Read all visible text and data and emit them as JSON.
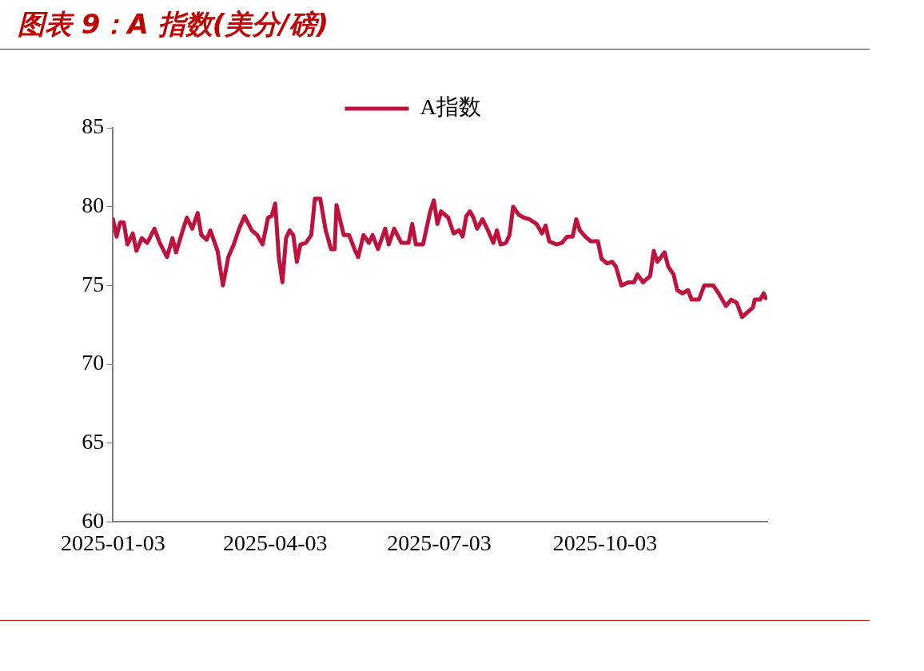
{
  "chart_data": {
    "type": "line",
    "title": "图表 9：A 指数(美分/磅)",
    "series": [
      {
        "name": "A指数",
        "color": "#c0103c",
        "x": [
          "2025-01-03",
          "2025-01-05",
          "2025-01-07",
          "2025-01-09",
          "2025-01-11",
          "2025-01-14",
          "2025-01-16",
          "2025-01-19",
          "2025-01-22",
          "2025-01-26",
          "2025-01-29",
          "2025-02-02",
          "2025-02-05",
          "2025-02-07",
          "2025-02-11",
          "2025-02-13",
          "2025-02-16",
          "2025-02-19",
          "2025-02-21",
          "2025-02-24",
          "2025-02-26",
          "2025-03-02",
          "2025-03-05",
          "2025-03-08",
          "2025-03-11",
          "2025-03-14",
          "2025-03-17",
          "2025-03-21",
          "2025-03-24",
          "2025-03-27",
          "2025-03-30",
          "2025-04-01",
          "2025-04-03",
          "2025-04-05",
          "2025-04-07",
          "2025-04-09",
          "2025-04-11",
          "2025-04-13",
          "2025-04-15",
          "2025-04-17",
          "2025-04-20",
          "2025-04-23",
          "2025-04-25",
          "2025-04-28",
          "2025-05-01",
          "2025-05-04",
          "2025-05-06",
          "2025-05-07",
          "2025-05-11",
          "2025-05-14",
          "2025-05-17",
          "2025-05-19",
          "2025-05-22",
          "2025-05-25",
          "2025-05-27",
          "2025-05-30",
          "2025-06-03",
          "2025-06-05",
          "2025-06-08",
          "2025-06-12",
          "2025-06-16",
          "2025-06-18",
          "2025-06-20",
          "2025-06-24",
          "2025-06-28",
          "2025-06-30",
          "2025-07-02",
          "2025-07-04",
          "2025-07-08",
          "2025-07-11",
          "2025-07-14",
          "2025-07-16",
          "2025-07-18",
          "2025-07-20",
          "2025-07-22",
          "2025-07-24",
          "2025-07-27",
          "2025-07-30",
          "2025-08-02",
          "2025-08-04",
          "2025-08-06",
          "2025-08-09",
          "2025-08-11",
          "2025-08-13",
          "2025-08-16",
          "2025-08-19",
          "2025-08-22",
          "2025-08-26",
          "2025-08-29",
          "2025-08-31",
          "2025-09-02",
          "2025-09-06",
          "2025-09-09",
          "2025-09-12",
          "2025-09-15",
          "2025-09-17",
          "2025-09-19",
          "2025-09-22",
          "2025-09-25",
          "2025-09-29",
          "2025-10-01",
          "2025-10-04",
          "2025-10-07",
          "2025-10-09",
          "2025-10-12",
          "2025-10-16",
          "2025-10-19",
          "2025-10-21",
          "2025-10-24",
          "2025-10-28",
          "2025-10-30",
          "2025-11-01",
          "2025-11-05",
          "2025-11-07",
          "2025-11-10",
          "2025-11-12",
          "2025-11-15",
          "2025-11-18",
          "2025-11-20",
          "2025-11-24",
          "2025-11-27",
          "2025-12-02",
          "2025-12-05",
          "2025-12-07",
          "2025-12-09",
          "2025-12-12",
          "2025-12-15",
          "2025-12-18",
          "2025-12-21",
          "2025-12-24",
          "2025-12-25",
          "2025-12-28",
          "2025-12-30",
          "2025-12-31"
        ],
        "values": [
          79.2,
          78.1,
          79.0,
          79.0,
          77.6,
          78.3,
          77.2,
          78.0,
          77.7,
          78.6,
          77.7,
          76.8,
          78.0,
          77.1,
          78.6,
          79.3,
          78.6,
          79.6,
          78.2,
          77.9,
          78.5,
          77.2,
          75.0,
          76.8,
          77.6,
          78.6,
          79.4,
          78.5,
          78.2,
          77.6,
          79.3,
          79.4,
          80.2,
          76.8,
          75.2,
          78.0,
          78.5,
          78.2,
          76.5,
          77.6,
          77.7,
          78.2,
          80.5,
          80.5,
          78.5,
          77.3,
          77.3,
          80.1,
          78.2,
          78.2,
          77.3,
          76.8,
          78.2,
          77.7,
          78.2,
          77.3,
          78.6,
          77.6,
          78.6,
          77.7,
          77.7,
          78.9,
          77.6,
          77.6,
          79.7,
          80.4,
          78.9,
          79.7,
          79.3,
          78.3,
          78.5,
          78.1,
          79.4,
          79.7,
          79.3,
          78.6,
          79.2,
          78.5,
          77.7,
          78.5,
          77.6,
          77.7,
          78.2,
          80.0,
          79.5,
          79.3,
          79.2,
          78.9,
          78.3,
          78.8,
          77.8,
          77.6,
          77.7,
          78.1,
          78.1,
          79.2,
          78.5,
          78.1,
          77.8,
          77.8,
          76.7,
          76.4,
          76.5,
          76.2,
          75.0,
          75.2,
          75.2,
          75.7,
          75.2,
          75.6,
          77.2,
          76.5,
          77.1,
          76.2,
          75.7,
          74.7,
          74.5,
          74.7,
          74.1,
          74.1,
          75.0,
          75.0,
          74.5,
          74.1,
          73.7,
          74.1,
          73.9,
          73.0,
          73.3,
          73.6,
          74.1,
          74.1,
          74.5,
          74.2
        ]
      }
    ],
    "xlim": [
      "2025-01-03",
      "2026-01-01"
    ],
    "xticks": [
      "2025-01-03",
      "2025-04-03",
      "2025-07-03",
      "2025-10-03"
    ],
    "ylim": [
      60,
      85
    ],
    "yticks": [
      60,
      65,
      70,
      75,
      80,
      85
    ],
    "grid": false,
    "legend": "top",
    "marker": "none",
    "line_style": "solid"
  }
}
